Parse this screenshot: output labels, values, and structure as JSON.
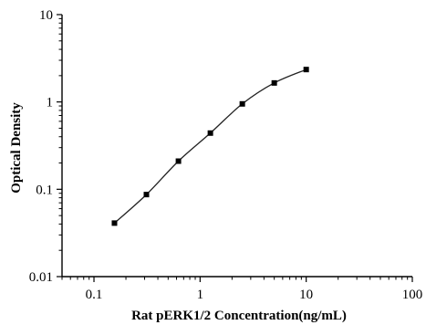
{
  "chart_data": {
    "type": "scatter",
    "title": "",
    "xlabel": "Rat pERK1/2 Concentration(ng/mL)",
    "ylabel": "Optical Density",
    "xscale": "log",
    "yscale": "log",
    "xlim": [
      0.05,
      100
    ],
    "ylim": [
      0.01,
      10
    ],
    "x_ticks": [
      0.1,
      1,
      10,
      100
    ],
    "x_tick_labels": [
      "0.1",
      "1",
      "10",
      "100"
    ],
    "y_ticks": [
      0.01,
      0.1,
      1,
      10
    ],
    "y_tick_labels": [
      "0.01",
      "0.1",
      "1",
      "10"
    ],
    "grid": false,
    "legend": "none",
    "series": [
      {
        "marker": "square",
        "line": "fitted curve",
        "points": [
          {
            "x": 0.156,
            "y": 0.041
          },
          {
            "x": 0.312,
            "y": 0.087
          },
          {
            "x": 0.625,
            "y": 0.21
          },
          {
            "x": 1.25,
            "y": 0.44
          },
          {
            "x": 2.5,
            "y": 0.95
          },
          {
            "x": 5,
            "y": 1.65
          },
          {
            "x": 10,
            "y": 2.35
          }
        ]
      }
    ]
  }
}
